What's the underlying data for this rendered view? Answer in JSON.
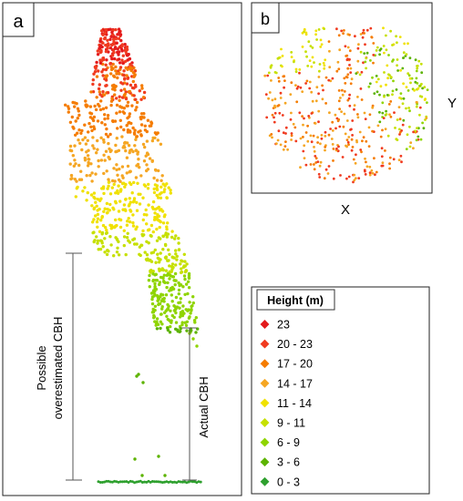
{
  "panels": {
    "a": {
      "label": "a"
    },
    "b": {
      "label": "b",
      "x_axis_label": "X",
      "y_axis_label": "Y"
    }
  },
  "annotations": {
    "possible_line1": "Possible",
    "possible_line2": "overestimated CBH",
    "actual": "Actual CBH"
  },
  "legend": {
    "title": "Height (m)",
    "items": [
      {
        "label": "23",
        "color": "#e31a1c"
      },
      {
        "label": "20 - 23",
        "color": "#f03b20"
      },
      {
        "label": "17 - 20",
        "color": "#f57c00"
      },
      {
        "label": "14 - 17",
        "color": "#f5a623"
      },
      {
        "label": "11 - 14",
        "color": "#f0e100"
      },
      {
        "label": "9 - 11",
        "color": "#c6e000"
      },
      {
        "label": "6 - 9",
        "color": "#8fd400"
      },
      {
        "label": "3 - 6",
        "color": "#5cb300"
      },
      {
        "label": "0 - 3",
        "color": "#2ea02e"
      }
    ]
  }
}
